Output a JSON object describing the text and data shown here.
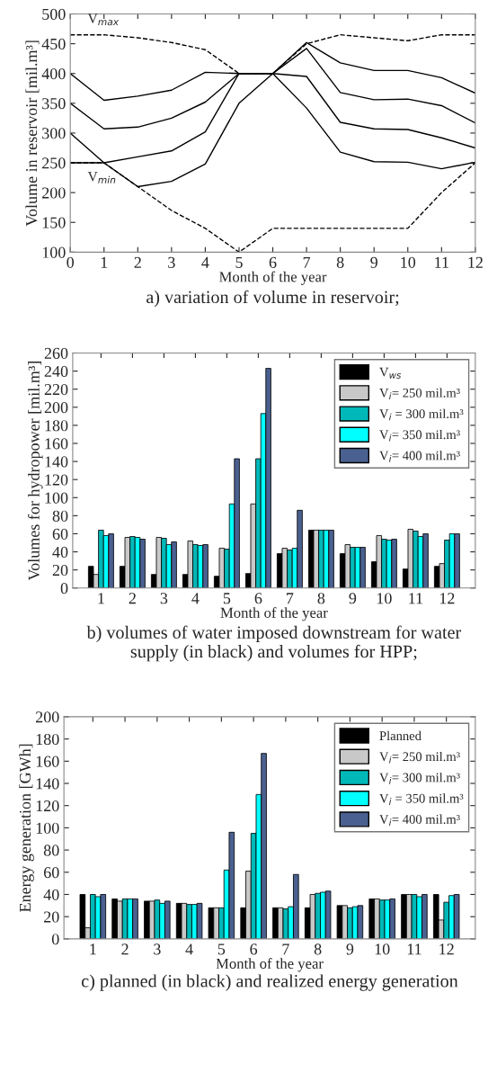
{
  "chart_data": [
    {
      "type": "line",
      "title": "a) variation of volume in reservoir;",
      "xlabel": "Month of the year",
      "ylabel": "Volume in reservoir [mil.m³]",
      "x": [
        0,
        1,
        2,
        3,
        4,
        5,
        6,
        7,
        8,
        9,
        10,
        11,
        12
      ],
      "xlim": [
        0,
        12
      ],
      "xticks": [
        0,
        1,
        2,
        3,
        4,
        5,
        6,
        7,
        8,
        9,
        10,
        11,
        12
      ],
      "ylim": [
        100,
        500
      ],
      "yticks": [
        100,
        150,
        200,
        250,
        300,
        350,
        400,
        450,
        500
      ],
      "grid": false,
      "legend": false,
      "marker": "none",
      "series": [
        {
          "color": "#000000",
          "line_style": "dashed",
          "values": [
            465,
            465,
            460,
            452,
            440,
            400,
            400,
            450,
            465,
            460,
            455,
            465,
            465
          ]
        },
        {
          "color": "#000000",
          "line_style": "dashed",
          "values": [
            250,
            250,
            210,
            170,
            140,
            100,
            140,
            140,
            140,
            140,
            140,
            200,
            250
          ]
        },
        {
          "color": "#000000",
          "line_style": "solid",
          "values": [
            400,
            355,
            362,
            372,
            402,
            400,
            400,
            452,
            418,
            405,
            405,
            393,
            367
          ]
        },
        {
          "color": "#000000",
          "line_style": "solid",
          "values": [
            350,
            307,
            310,
            325,
            352,
            400,
            400,
            442,
            368,
            356,
            357,
            346,
            317
          ]
        },
        {
          "color": "#000000",
          "line_style": "solid",
          "values": [
            300,
            250,
            260,
            270,
            302,
            400,
            400,
            395,
            318,
            307,
            306,
            292,
            275
          ]
        },
        {
          "color": "#000000",
          "line_style": "solid",
          "values": [
            250,
            250,
            210,
            219,
            248,
            350,
            400,
            342,
            268,
            252,
            251,
            240,
            251
          ]
        }
      ],
      "annotations": [
        "V$_{max}$",
        "V$_{min}$"
      ]
    },
    {
      "type": "bar",
      "title": "b) volumes of water imposed downstream for water supply (in black) and volumes for HPP;",
      "xlabel": "Month of the year",
      "ylabel": "Volumes for hydropower [mil.m³]",
      "categories": [
        "1",
        "2",
        "3",
        "4",
        "5",
        "6",
        "7",
        "8",
        "9",
        "10",
        "11",
        "12"
      ],
      "ylim": [
        0,
        260
      ],
      "yticks": [
        0,
        20,
        40,
        60,
        80,
        100,
        120,
        140,
        160,
        180,
        200,
        220,
        240,
        260
      ],
      "grid": false,
      "legend": "top right",
      "series": [
        {
          "name": "V$_{ws}$",
          "color": "#000000",
          "values": [
            24,
            24,
            15,
            15,
            13,
            16,
            38,
            64,
            38,
            29,
            21,
            24
          ]
        },
        {
          "name": "V$_{i}$= 250 mil.m³",
          "color": "#c8c8c8",
          "values": [
            15,
            56,
            56,
            52,
            44,
            93,
            44,
            64,
            48,
            58,
            65,
            27
          ]
        },
        {
          "name": "V$_{i}$ = 300 mil.m³",
          "color": "#00b8b8",
          "values": [
            64,
            57,
            55,
            48,
            43,
            143,
            42,
            64,
            45,
            54,
            63,
            53
          ]
        },
        {
          "name": "V$_{i}$= 350 mil.m³",
          "color": "#00ffff",
          "values": [
            58,
            56,
            48,
            47,
            93,
            193,
            44,
            64,
            45,
            53,
            57,
            60
          ]
        },
        {
          "name": "V$_{i}$= 400 mil.m³",
          "color": "#4a6090",
          "values": [
            60,
            54,
            51,
            48,
            143,
            243,
            86,
            64,
            45,
            54,
            60,
            60
          ]
        }
      ]
    },
    {
      "type": "bar",
      "title": "c) planned (in black) and realized energy generation",
      "xlabel": "Month of the year",
      "ylabel": "Energy generation [GWh]",
      "categories": [
        "1",
        "2",
        "3",
        "4",
        "5",
        "6",
        "7",
        "8",
        "9",
        "10",
        "11",
        "12"
      ],
      "ylim": [
        0,
        200
      ],
      "yticks": [
        0,
        20,
        40,
        60,
        80,
        100,
        120,
        140,
        160,
        180,
        200
      ],
      "grid": false,
      "legend": "top right",
      "series": [
        {
          "name": "Planned",
          "color": "#000000",
          "values": [
            40,
            36,
            34,
            32,
            28,
            28,
            28,
            28,
            30,
            36,
            40,
            40
          ]
        },
        {
          "name": "V$_{i}$= 250 mil.m³",
          "color": "#c8c8c8",
          "values": [
            10,
            34,
            34,
            32,
            28,
            61,
            28,
            40,
            30,
            36,
            40,
            17
          ]
        },
        {
          "name": "V$_{i}$= 300 mil.m³",
          "color": "#00b8b8",
          "values": [
            40,
            36,
            35,
            31,
            28,
            95,
            27,
            41,
            28,
            35,
            40,
            33
          ]
        },
        {
          "name": "V$_{i}$ = 350 mil.m³",
          "color": "#00ffff",
          "values": [
            38,
            36,
            32,
            31,
            62,
            130,
            29,
            42,
            29,
            35,
            38,
            39
          ]
        },
        {
          "name": "V$_{i}$= 400 mil.m³",
          "color": "#4a6090",
          "values": [
            40,
            36,
            34,
            32,
            96,
            167,
            58,
            43,
            30,
            36,
            40,
            40
          ]
        }
      ]
    }
  ]
}
